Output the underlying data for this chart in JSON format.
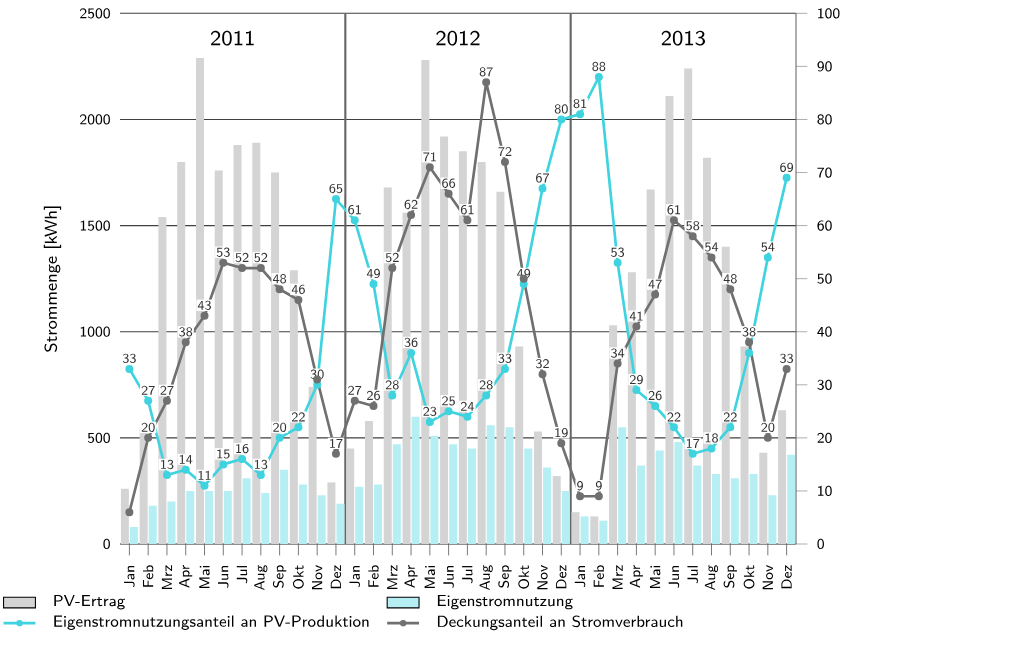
{
  "chart_data": {
    "type": "bar",
    "ylabel": "Strommenge [kWh]",
    "categories": [
      "Jan",
      "Feb",
      "Mrz",
      "Apr",
      "Mai",
      "Jun",
      "Jul",
      "Aug",
      "Sep",
      "Okt",
      "Nov",
      "Dez",
      "Jan",
      "Feb",
      "Mrz",
      "Apr",
      "Mai",
      "Jun",
      "Jul",
      "Aug",
      "Sep",
      "Okt",
      "Nov",
      "Dez",
      "Jan",
      "Feb",
      "Mrz",
      "Apr",
      "Mai",
      "Jun",
      "Jul",
      "Aug",
      "Sep",
      "Okt",
      "Nov",
      "Dez"
    ],
    "series": [
      {
        "name": "PV-Ertrag",
        "color": "#d4d4d4",
        "values": [
          260,
          550,
          1540,
          1800,
          2290,
          1760,
          1880,
          1890,
          1750,
          1290,
          740,
          290,
          450,
          580,
          1680,
          1560,
          2280,
          1920,
          1850,
          1800,
          1660,
          930,
          530,
          320,
          150,
          130,
          1030,
          1280,
          1670,
          2110,
          2240,
          1820,
          1400,
          930,
          430,
          630
        ]
      },
      {
        "name": "Eigenstromnutzung",
        "color": "#b5eff3",
        "values": [
          80,
          180,
          200,
          250,
          250,
          250,
          310,
          240,
          350,
          280,
          230,
          190,
          270,
          280,
          470,
          600,
          510,
          470,
          450,
          560,
          550,
          450,
          360,
          250,
          130,
          110,
          550,
          370,
          440,
          480,
          370,
          330,
          310,
          330,
          230,
          420
        ]
      },
      {
        "name": "Eigenstromnutzungsanteil an PV-Produktion",
        "type": "line",
        "axis": "y2",
        "color": "#3fd3df",
        "values": [
          33,
          27,
          13,
          14,
          11,
          15,
          16,
          13,
          20,
          22,
          30,
          65,
          61,
          49,
          28,
          36,
          23,
          25,
          24,
          28,
          33,
          49,
          67,
          80,
          81,
          88,
          53,
          29,
          26,
          22,
          17,
          18,
          22,
          36,
          54,
          69
        ],
        "value_labels": [
          "33",
          "27",
          "13",
          "14",
          "11",
          "15",
          "16",
          "13",
          "20",
          "22",
          "30",
          "65",
          "61",
          "49",
          "28",
          "36",
          "23",
          "25",
          "24",
          "28",
          "33",
          "49",
          "67",
          "80",
          "81",
          "88",
          "53",
          "29",
          "26",
          "22",
          "17",
          "18",
          "22",
          null,
          "54",
          "69"
        ]
      },
      {
        "name": "Deckungsanteil an Stromverbrauch",
        "type": "line",
        "axis": "y2",
        "color": "#707070",
        "values": [
          6,
          20,
          27,
          38,
          43,
          53,
          52,
          52,
          48,
          46,
          31,
          17,
          27,
          26,
          52,
          62,
          71,
          66,
          61,
          87,
          72,
          50,
          32,
          19,
          9,
          9,
          34,
          41,
          47,
          61,
          58,
          54,
          48,
          38,
          20,
          33
        ],
        "value_labels": [
          null,
          "20",
          "27",
          "38",
          "43",
          "53",
          "52",
          "52",
          "48",
          "46",
          null,
          "17",
          "27",
          "26",
          "52",
          "62",
          "71",
          "66",
          "61",
          "87",
          "72",
          null,
          "32",
          "19",
          "9",
          "9",
          "34",
          "41",
          "47",
          "61",
          "58",
          "54",
          "48",
          "38",
          "20",
          "33"
        ]
      }
    ],
    "ylim": [
      0,
      2500
    ],
    "yticks": [
      0,
      500,
      1000,
      1500,
      2000,
      2500
    ],
    "y2lim": [
      0,
      100
    ],
    "y2ticks": [
      0,
      10,
      20,
      30,
      40,
      50,
      60,
      70,
      80,
      90,
      100
    ],
    "annotations": [
      "2011",
      "2012",
      "2013"
    ],
    "grid": "y",
    "legend": "bottom",
    "marker": "circle"
  }
}
